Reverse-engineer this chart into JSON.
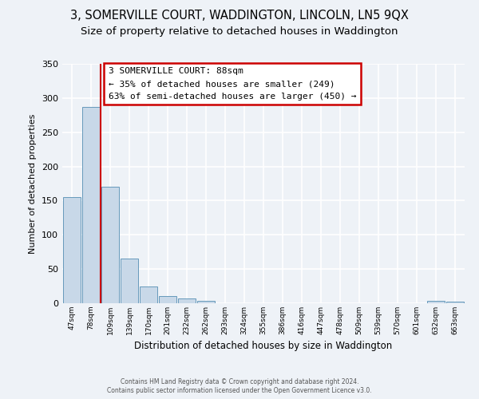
{
  "title": "3, SOMERVILLE COURT, WADDINGTON, LINCOLN, LN5 9QX",
  "subtitle": "Size of property relative to detached houses in Waddington",
  "xlabel": "Distribution of detached houses by size in Waddington",
  "ylabel": "Number of detached properties",
  "bar_labels": [
    "47sqm",
    "78sqm",
    "109sqm",
    "139sqm",
    "170sqm",
    "201sqm",
    "232sqm",
    "262sqm",
    "293sqm",
    "324sqm",
    "355sqm",
    "386sqm",
    "416sqm",
    "447sqm",
    "478sqm",
    "509sqm",
    "539sqm",
    "570sqm",
    "601sqm",
    "632sqm",
    "663sqm"
  ],
  "bar_values": [
    155,
    287,
    170,
    65,
    25,
    10,
    7,
    3,
    0,
    0,
    0,
    0,
    0,
    0,
    0,
    0,
    0,
    0,
    0,
    3,
    2
  ],
  "bar_color": "#c8d8e8",
  "bar_edge_color": "#6699bb",
  "vline_color": "#cc0000",
  "ylim": [
    0,
    350
  ],
  "yticks": [
    0,
    50,
    100,
    150,
    200,
    250,
    300,
    350
  ],
  "annotation_title": "3 SOMERVILLE COURT: 88sqm",
  "annotation_line1": "← 35% of detached houses are smaller (249)",
  "annotation_line2": "63% of semi-detached houses are larger (450) →",
  "annotation_box_color": "#ffffff",
  "annotation_border_color": "#cc0000",
  "footer1": "Contains HM Land Registry data © Crown copyright and database right 2024.",
  "footer2": "Contains public sector information licensed under the Open Government Licence v3.0.",
  "background_color": "#eef2f7",
  "grid_color": "#ffffff",
  "title_fontsize": 10.5,
  "subtitle_fontsize": 9.5
}
